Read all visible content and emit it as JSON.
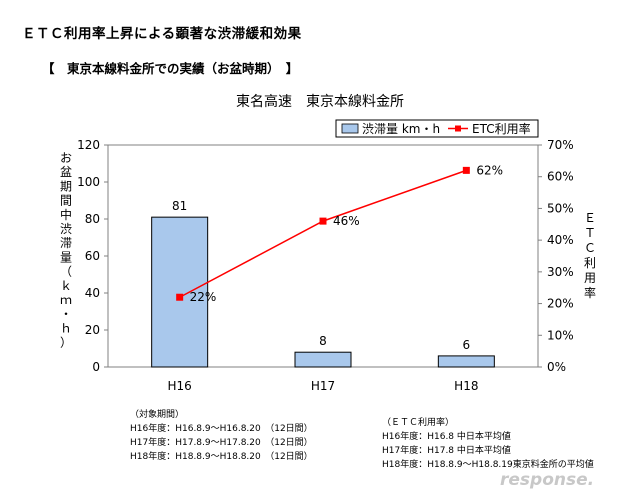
{
  "heading": "ＥＴＣ利用率上昇による顕著な渋滞緩和効果",
  "subheading": "【　東京本線料金所での実績（お盆時期）　】",
  "chart_data": {
    "type": "bar+line",
    "title": "東名高速　東京本線料金所",
    "categories": [
      "H16",
      "H17",
      "H18"
    ],
    "left_axis": {
      "label_chars": [
        "お",
        "盆",
        "期",
        "間",
        "中",
        "渋",
        "滞",
        "量",
        "（",
        "ｋ",
        "ｍ",
        "・",
        "ｈ",
        "）"
      ],
      "ticks": [
        "0",
        "20",
        "40",
        "60",
        "80",
        "100",
        "120"
      ],
      "ylim": [
        0,
        120
      ]
    },
    "right_axis": {
      "label_chars": [
        "Ｅ",
        "Ｔ",
        "Ｃ",
        "利",
        "用",
        "率"
      ],
      "ticks": [
        "0%",
        "10%",
        "20%",
        "30%",
        "40%",
        "50%",
        "60%",
        "70%"
      ],
      "ylim": [
        0,
        70
      ]
    },
    "series": [
      {
        "name": "渋滞量 km・h",
        "type": "bar",
        "axis": "left",
        "values": [
          81,
          8,
          6
        ],
        "labels": [
          "81",
          "8",
          "6"
        ],
        "color": "#a9c8ec"
      },
      {
        "name": "ETC利用率",
        "type": "line",
        "axis": "right",
        "values": [
          22,
          46,
          62
        ],
        "labels": [
          "22%",
          "46%",
          "62%"
        ],
        "color": "#ff0000"
      }
    ],
    "legend_position": "top-right"
  },
  "notes_left": {
    "heading": "（対象期間）",
    "lines": [
      "H16年度：H16.8.9～H16.8.20　（12日間）",
      "H17年度：H17.8.9～H17.8.20　（12日間）",
      "H18年度：H18.8.9～H18.8.20　（12日間）"
    ]
  },
  "notes_right": {
    "heading": "（ＥＴＣ利用率）",
    "lines": [
      "H16年度：H16.8 中日本平均値",
      "H17年度：H17.8 中日本平均値",
      "H18年度：H18.8.9～H18.8.19東京料金所の平均値"
    ]
  },
  "watermark": "response."
}
